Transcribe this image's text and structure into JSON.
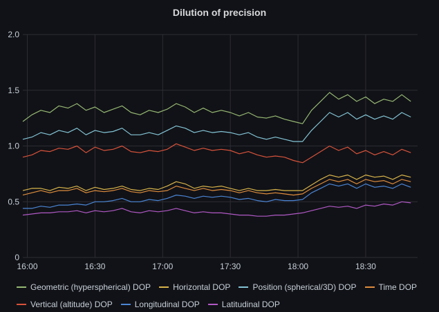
{
  "panel": {
    "title": "Dilution of precision"
  },
  "chart_data": {
    "type": "line",
    "title": "Dilution of precision",
    "xlabel": "",
    "ylabel": "",
    "x_ticks": [
      "16:00",
      "16:30",
      "17:00",
      "17:30",
      "18:00",
      "18:30"
    ],
    "x_tick_minutes": [
      0,
      30,
      60,
      90,
      120,
      150
    ],
    "x_range_minutes": [
      -2,
      173
    ],
    "ylim": [
      0,
      2.0
    ],
    "y_ticks": [
      "0",
      "0.5",
      "1.0",
      "1.5",
      "2.0"
    ],
    "grid": true,
    "legend_position": "bottom",
    "x_times": [
      "15:58",
      "16:02",
      "16:06",
      "16:10",
      "16:14",
      "16:18",
      "16:22",
      "16:26",
      "16:30",
      "16:34",
      "16:38",
      "16:42",
      "16:46",
      "16:50",
      "16:54",
      "16:58",
      "17:02",
      "17:06",
      "17:10",
      "17:14",
      "17:18",
      "17:22",
      "17:26",
      "17:30",
      "17:34",
      "17:38",
      "17:42",
      "17:46",
      "17:50",
      "17:54",
      "17:58",
      "18:02",
      "18:06",
      "18:10",
      "18:14",
      "18:18",
      "18:22",
      "18:26",
      "18:30",
      "18:34",
      "18:38",
      "18:42",
      "18:46",
      "18:50"
    ],
    "series": [
      {
        "name": "Geometric (hyperspherical) DOP",
        "color": "#96b873",
        "values": [
          1.22,
          1.28,
          1.32,
          1.3,
          1.36,
          1.34,
          1.38,
          1.32,
          1.35,
          1.3,
          1.33,
          1.36,
          1.3,
          1.28,
          1.32,
          1.3,
          1.33,
          1.38,
          1.35,
          1.3,
          1.34,
          1.3,
          1.32,
          1.3,
          1.27,
          1.3,
          1.26,
          1.25,
          1.27,
          1.24,
          1.22,
          1.2,
          1.32,
          1.4,
          1.48,
          1.42,
          1.46,
          1.4,
          1.44,
          1.38,
          1.42,
          1.4,
          1.46,
          1.4
        ]
      },
      {
        "name": "Horizontal DOP",
        "color": "#d9b44a",
        "values": [
          0.6,
          0.62,
          0.62,
          0.6,
          0.63,
          0.62,
          0.64,
          0.6,
          0.63,
          0.61,
          0.62,
          0.64,
          0.61,
          0.6,
          0.62,
          0.61,
          0.64,
          0.68,
          0.66,
          0.62,
          0.64,
          0.63,
          0.64,
          0.62,
          0.6,
          0.62,
          0.6,
          0.6,
          0.61,
          0.6,
          0.6,
          0.6,
          0.65,
          0.7,
          0.74,
          0.72,
          0.74,
          0.7,
          0.74,
          0.72,
          0.73,
          0.7,
          0.74,
          0.72
        ]
      },
      {
        "name": "Position (spherical/3D) DOP",
        "color": "#84c5d6",
        "values": [
          1.06,
          1.08,
          1.12,
          1.1,
          1.14,
          1.12,
          1.16,
          1.1,
          1.14,
          1.12,
          1.13,
          1.16,
          1.1,
          1.1,
          1.12,
          1.1,
          1.14,
          1.18,
          1.16,
          1.12,
          1.14,
          1.12,
          1.13,
          1.12,
          1.1,
          1.12,
          1.08,
          1.06,
          1.08,
          1.06,
          1.04,
          1.04,
          1.14,
          1.22,
          1.3,
          1.26,
          1.3,
          1.24,
          1.28,
          1.24,
          1.27,
          1.24,
          1.3,
          1.26
        ]
      },
      {
        "name": "Time DOP",
        "color": "#e08d3c",
        "values": [
          0.56,
          0.58,
          0.6,
          0.58,
          0.6,
          0.6,
          0.62,
          0.58,
          0.6,
          0.59,
          0.6,
          0.62,
          0.59,
          0.58,
          0.6,
          0.59,
          0.6,
          0.64,
          0.62,
          0.6,
          0.62,
          0.6,
          0.61,
          0.6,
          0.58,
          0.6,
          0.58,
          0.57,
          0.58,
          0.57,
          0.56,
          0.57,
          0.62,
          0.66,
          0.7,
          0.68,
          0.7,
          0.66,
          0.7,
          0.68,
          0.69,
          0.66,
          0.7,
          0.68
        ]
      },
      {
        "name": "Vertical (altitude) DOP",
        "color": "#d9533b",
        "values": [
          0.9,
          0.92,
          0.96,
          0.95,
          0.98,
          0.97,
          1.0,
          0.94,
          0.99,
          0.96,
          0.97,
          1.0,
          0.95,
          0.94,
          0.96,
          0.95,
          0.97,
          1.02,
          0.99,
          0.96,
          0.98,
          0.96,
          0.97,
          0.96,
          0.93,
          0.95,
          0.92,
          0.9,
          0.91,
          0.9,
          0.87,
          0.85,
          0.9,
          0.95,
          1.0,
          0.96,
          0.99,
          0.93,
          0.96,
          0.92,
          0.95,
          0.92,
          0.97,
          0.94
        ]
      },
      {
        "name": "Longitudinal DOP",
        "color": "#4b86d6",
        "values": [
          0.44,
          0.44,
          0.46,
          0.45,
          0.47,
          0.47,
          0.48,
          0.47,
          0.5,
          0.5,
          0.51,
          0.53,
          0.5,
          0.5,
          0.52,
          0.51,
          0.53,
          0.56,
          0.55,
          0.53,
          0.55,
          0.54,
          0.55,
          0.54,
          0.52,
          0.53,
          0.51,
          0.5,
          0.52,
          0.51,
          0.51,
          0.52,
          0.58,
          0.62,
          0.66,
          0.64,
          0.66,
          0.62,
          0.66,
          0.63,
          0.64,
          0.62,
          0.66,
          0.63
        ]
      },
      {
        "name": "Latitudinal DOP",
        "color": "#b159c6",
        "values": [
          0.38,
          0.39,
          0.4,
          0.4,
          0.41,
          0.41,
          0.42,
          0.4,
          0.42,
          0.41,
          0.42,
          0.44,
          0.41,
          0.4,
          0.42,
          0.41,
          0.42,
          0.44,
          0.42,
          0.4,
          0.41,
          0.4,
          0.4,
          0.39,
          0.38,
          0.38,
          0.37,
          0.37,
          0.38,
          0.38,
          0.39,
          0.4,
          0.42,
          0.44,
          0.46,
          0.45,
          0.46,
          0.44,
          0.47,
          0.46,
          0.48,
          0.47,
          0.5,
          0.49
        ]
      }
    ]
  }
}
